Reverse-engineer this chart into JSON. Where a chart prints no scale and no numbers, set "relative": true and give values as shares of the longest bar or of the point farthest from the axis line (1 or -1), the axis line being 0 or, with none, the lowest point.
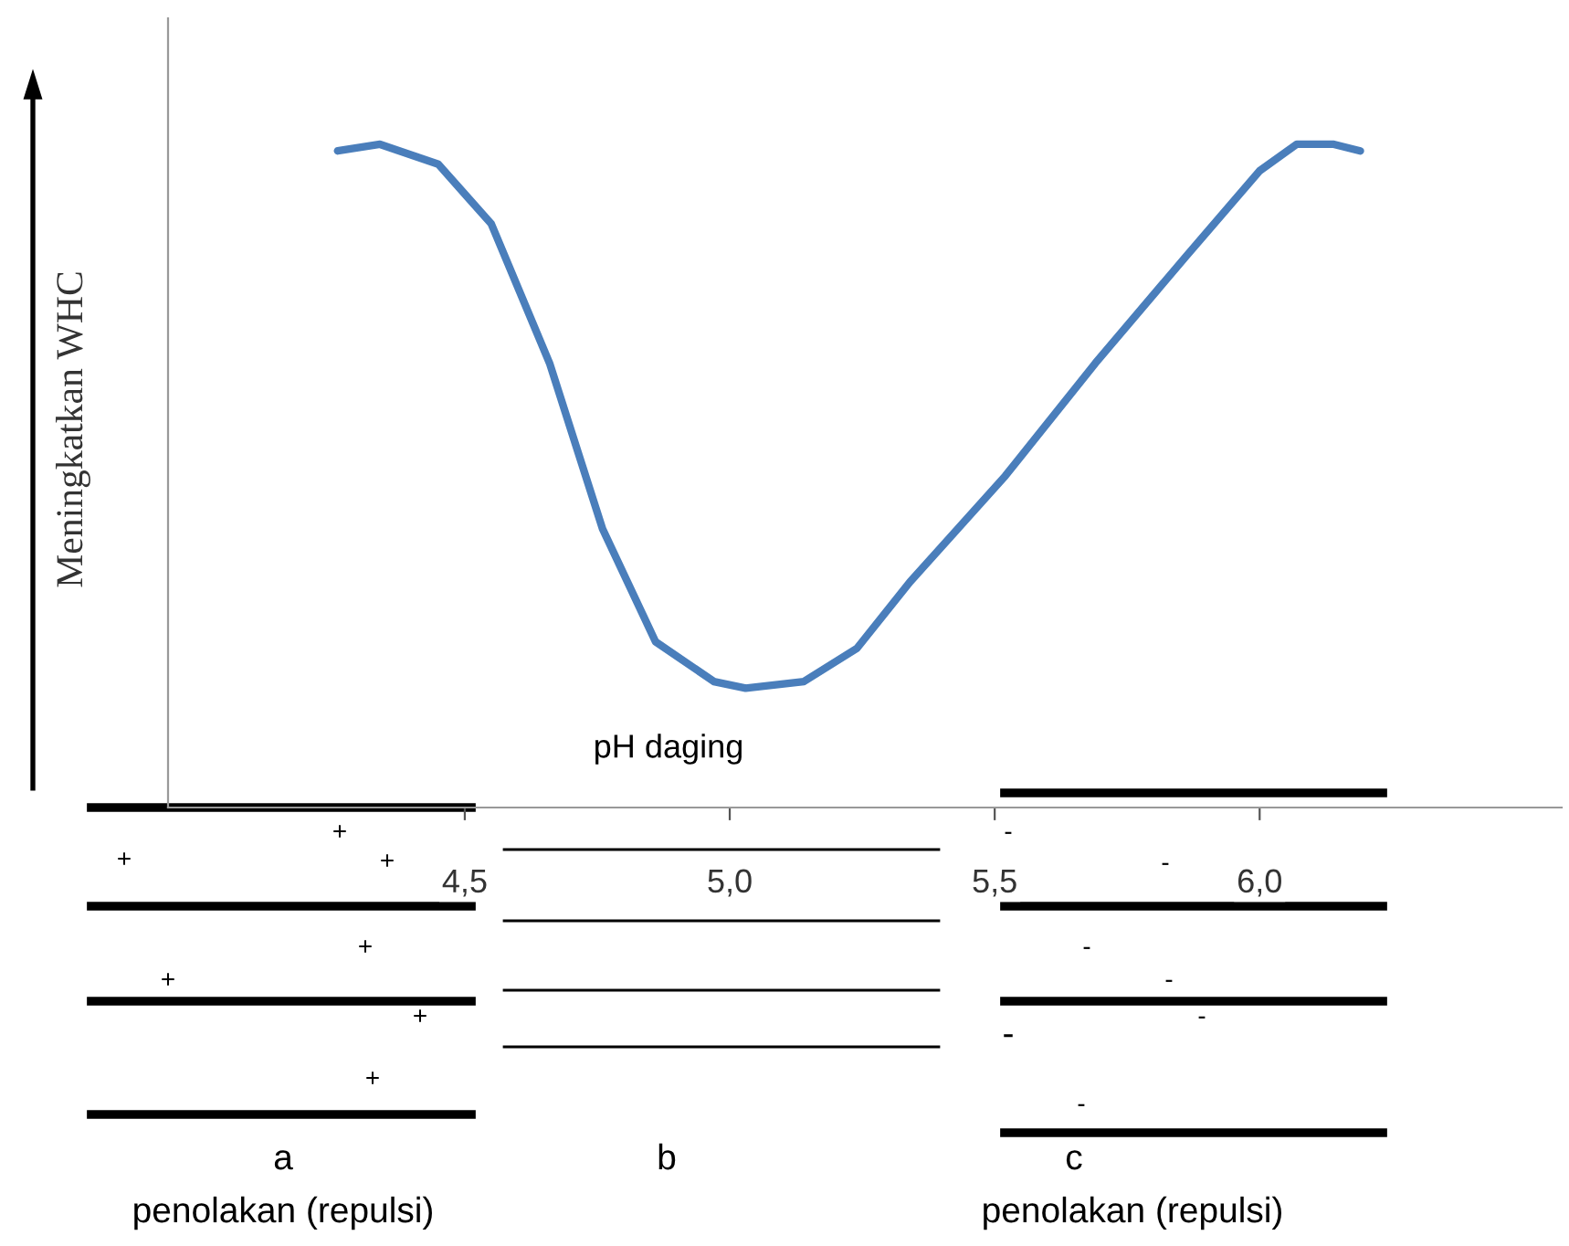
{
  "chart_data": {
    "type": "line",
    "relative": true,
    "ylabel": "Meningkatkan WHC",
    "x": [
      4.26,
      4.34,
      4.45,
      4.55,
      4.66,
      4.76,
      4.86,
      4.97,
      5.03,
      5.14,
      5.24,
      5.34,
      5.52,
      5.69,
      5.86,
      6.0,
      6.07,
      6.14,
      6.19
    ],
    "series": [
      {
        "color": "#4a7ebb",
        "values": [
          0.99,
          1.0,
          0.97,
          0.88,
          0.67,
          0.42,
          0.25,
          0.19,
          0.18,
          0.19,
          0.24,
          0.34,
          0.5,
          0.67,
          0.83,
          0.96,
          1.0,
          1.0,
          0.99
        ]
      }
    ],
    "xlim": [
      3.94,
      6.57
    ],
    "xticks": [
      {
        "value": 4.5,
        "label": "4,5"
      },
      {
        "value": 5.0,
        "label": "5,0"
      },
      {
        "value": 5.5,
        "label": "5,5"
      },
      {
        "value": 6.0,
        "label": "6,0"
      }
    ],
    "tick_labels": "x",
    "grid": false,
    "legend": false,
    "marker": "none",
    "line_style": "solid",
    "annotations": [
      "pH daging",
      "a",
      "b",
      "c",
      "penolakan (repulsi)",
      "penolakan (repulsi)",
      "+",
      "+",
      "+",
      "+",
      "+",
      "+",
      "+",
      "-",
      "-",
      "-",
      "-",
      "-",
      "-",
      "-"
    ]
  }
}
